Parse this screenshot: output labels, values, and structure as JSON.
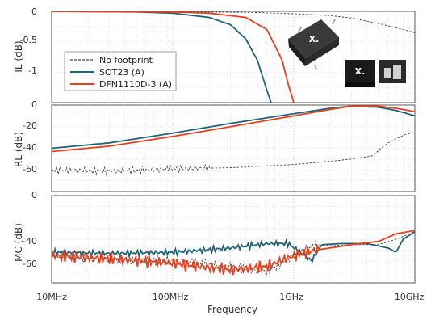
{
  "chart_data": {
    "type": "line",
    "xlabel": "Frequency",
    "x_scale": "log",
    "x_range_hz": [
      10000000,
      10000000000
    ],
    "x_tick_labels": [
      "10MHz",
      "100MHz",
      "1GHz",
      "10GHz"
    ],
    "grid": true,
    "legend_placement": "top-left (top panel)",
    "legend": [
      "No footprint",
      "SOT23 (A)",
      "DFN1110D-3 (A)"
    ],
    "colors": {
      "No footprint": "#444444",
      "SOT23 (A)": "#1f6478",
      "DFN1110D-3 (A)": "#e8401c"
    },
    "panels": [
      {
        "ylabel": "IL (dB)",
        "ylim": [
          -1.5,
          0
        ],
        "y_tick_labels": [
          "0",
          "-0.5",
          "-1"
        ],
        "series": [
          {
            "name": "No footprint",
            "style": "dashed",
            "x": [
              10000000,
              100000000,
              500000000,
              1000000000,
              2000000000,
              3000000000,
              5000000000,
              7000000000,
              10000000000
            ],
            "y": [
              0,
              -0.005,
              -0.02,
              -0.04,
              -0.07,
              -0.11,
              -0.2,
              -0.27,
              -0.35
            ]
          },
          {
            "name": "SOT23 (A)",
            "style": "solid",
            "x": [
              10000000,
              50000000,
              100000000,
              200000000,
              300000000,
              400000000,
              500000000,
              600000000,
              650000000
            ],
            "y": [
              0,
              -0.01,
              -0.03,
              -0.1,
              -0.22,
              -0.45,
              -0.8,
              -1.3,
              -1.5
            ]
          },
          {
            "name": "DFN1110D-3 (A)",
            "style": "solid",
            "x": [
              10000000,
              100000000,
              200000000,
              400000000,
              600000000,
              800000000,
              900000000,
              1000000000
            ],
            "y": [
              0,
              -0.01,
              -0.03,
              -0.1,
              -0.3,
              -0.8,
              -1.2,
              -1.5
            ]
          }
        ]
      },
      {
        "ylabel": "RL (dB)",
        "ylim": [
          -80,
          0
        ],
        "y_tick_labels": [
          "0",
          "-20",
          "-40",
          "-60"
        ],
        "series": [
          {
            "name": "No footprint",
            "style": "dashed",
            "x": [
              10000000,
              30000000,
              60000000,
              100000000,
              300000000,
              1000000000,
              2000000000,
              3000000000,
              4500000000,
              5000000000,
              6000000000,
              8000000000,
              10000000000
            ],
            "y": [
              -60,
              -61,
              -60,
              -59,
              -58,
              -55,
              -52,
              -50,
              -47,
              -42,
              -35,
              -28,
              -25
            ]
          },
          {
            "name": "SOT23 (A)",
            "style": "solid",
            "x": [
              10000000,
              30000000,
              100000000,
              300000000,
              1000000000,
              2000000000,
              3000000000,
              5000000000,
              7000000000,
              10000000000
            ],
            "y": [
              -40,
              -35,
              -26,
              -17,
              -8,
              -3,
              -1,
              -2,
              -5,
              -10
            ]
          },
          {
            "name": "DFN1110D-3 (A)",
            "style": "solid",
            "x": [
              10000000,
              30000000,
              100000000,
              300000000,
              1000000000,
              2000000000,
              3000000000,
              5000000000,
              7000000000,
              10000000000
            ],
            "y": [
              -43,
              -38,
              -29,
              -20,
              -10,
              -4,
              -1,
              -1,
              -3,
              -6
            ]
          }
        ]
      },
      {
        "ylabel": "MC (dB)",
        "ylim": [
          -80,
          0
        ],
        "y_tick_labels": [
          "0",
          "-40",
          "-60"
        ],
        "series": [
          {
            "name": "No footprint",
            "style": "dashed",
            "x": [
              10000000,
              30000000,
              100000000,
              300000000,
              600000000,
              1000000000,
              1500000000,
              2000000000,
              3000000000,
              5000000000,
              7000000000,
              10000000000
            ],
            "y": [
              -55,
              -58,
              -60,
              -65,
              -70,
              -55,
              -45,
              -46,
              -45,
              -45,
              -40,
              -33
            ]
          },
          {
            "name": "SOT23 (A)",
            "style": "solid",
            "x": [
              10000000,
              30000000,
              100000000,
              300000000,
              600000000,
              900000000,
              1100000000,
              1400000000,
              1700000000,
              2500000000,
              4000000000,
              6000000000,
              7000000000,
              8000000000,
              10000000000
            ],
            "y": [
              -52,
              -53,
              -52,
              -48,
              -44,
              -44,
              -51,
              -60,
              -45,
              -44,
              -44,
              -48,
              -52,
              -40,
              -33
            ]
          },
          {
            "name": "DFN1110D-3 (A)",
            "style": "solid",
            "x": [
              10000000,
              30000000,
              100000000,
              300000000,
              600000000,
              1000000000,
              1500000000,
              2000000000,
              3000000000,
              5000000000,
              7000000000,
              10000000000
            ],
            "y": [
              -55,
              -58,
              -62,
              -68,
              -65,
              -55,
              -50,
              -48,
              -45,
              -42,
              -35,
              -32
            ]
          }
        ]
      }
    ]
  },
  "inset_images": [
    "sot23-package-image",
    "dfn1110d-3-package-image"
  ]
}
